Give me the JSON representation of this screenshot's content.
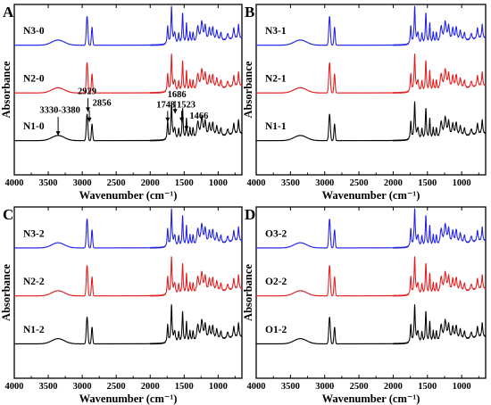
{
  "chart_data": [
    {
      "type": "line",
      "panel": "A",
      "xlabel": "Wavenumber (cm⁻¹)",
      "ylabel": "Absorbance",
      "xlim": [
        4000,
        650
      ],
      "x_reversed": true,
      "ticks": [
        "4000",
        "3500",
        "3000",
        "2500",
        "2000",
        "1500",
        "1000"
      ],
      "tick_values": [
        4000,
        3500,
        3000,
        2500,
        2000,
        1500,
        1000
      ],
      "series": [
        {
          "name": "N3-0",
          "color": "#1f1fe6"
        },
        {
          "name": "N2-0",
          "color": "#e41a1c"
        },
        {
          "name": "N1-0",
          "color": "#000000"
        }
      ],
      "annotations": [
        {
          "text": "3330-3380",
          "x": 3355
        },
        {
          "text": "2929",
          "x": 2929
        },
        {
          "text": "2856",
          "x": 2856
        },
        {
          "text": "1743",
          "x": 1743
        },
        {
          "text": "1686",
          "x": 1686
        },
        {
          "text": "1523",
          "x": 1523
        },
        {
          "text": "1466",
          "x": 1466
        }
      ],
      "grid": false
    },
    {
      "type": "line",
      "panel": "B",
      "xlabel": "Wavenumber (cm⁻¹)",
      "ylabel": "Absorbance",
      "xlim": [
        4000,
        650
      ],
      "x_reversed": true,
      "ticks": [
        "4000",
        "3500",
        "3000",
        "2500",
        "2000",
        "1500",
        "1000"
      ],
      "tick_values": [
        4000,
        3500,
        3000,
        2500,
        2000,
        1500,
        1000
      ],
      "series": [
        {
          "name": "N3-1",
          "color": "#1f1fe6"
        },
        {
          "name": "N2-1",
          "color": "#e41a1c"
        },
        {
          "name": "N1-1",
          "color": "#000000"
        }
      ],
      "annotations": [],
      "grid": false
    },
    {
      "type": "line",
      "panel": "C",
      "xlabel": "Wavenumber (cm⁻¹)",
      "ylabel": "Absorbance",
      "xlim": [
        4000,
        650
      ],
      "x_reversed": true,
      "ticks": [
        "4000",
        "3500",
        "3000",
        "2500",
        "2000",
        "1500",
        "1000"
      ],
      "tick_values": [
        4000,
        3500,
        3000,
        2500,
        2000,
        1500,
        1000
      ],
      "series": [
        {
          "name": "N3-2",
          "color": "#1f1fe6"
        },
        {
          "name": "N2-2",
          "color": "#e41a1c"
        },
        {
          "name": "N1-2",
          "color": "#000000"
        }
      ],
      "annotations": [],
      "grid": false
    },
    {
      "type": "line",
      "panel": "D",
      "xlabel": "Wavenumber (cm⁻¹)",
      "ylabel": "Absorbance",
      "xlim": [
        4000,
        650
      ],
      "x_reversed": true,
      "ticks": [
        "4000",
        "3500",
        "3000",
        "2500",
        "2000",
        "1500",
        "1000"
      ],
      "tick_values": [
        4000,
        3500,
        3000,
        2500,
        2000,
        1500,
        1000
      ],
      "series": [
        {
          "name": "O3-2",
          "color": "#1f1fe6"
        },
        {
          "name": "O2-2",
          "color": "#e41a1c"
        },
        {
          "name": "O1-2",
          "color": "#000000"
        }
      ],
      "annotations": [],
      "grid": false
    }
  ]
}
